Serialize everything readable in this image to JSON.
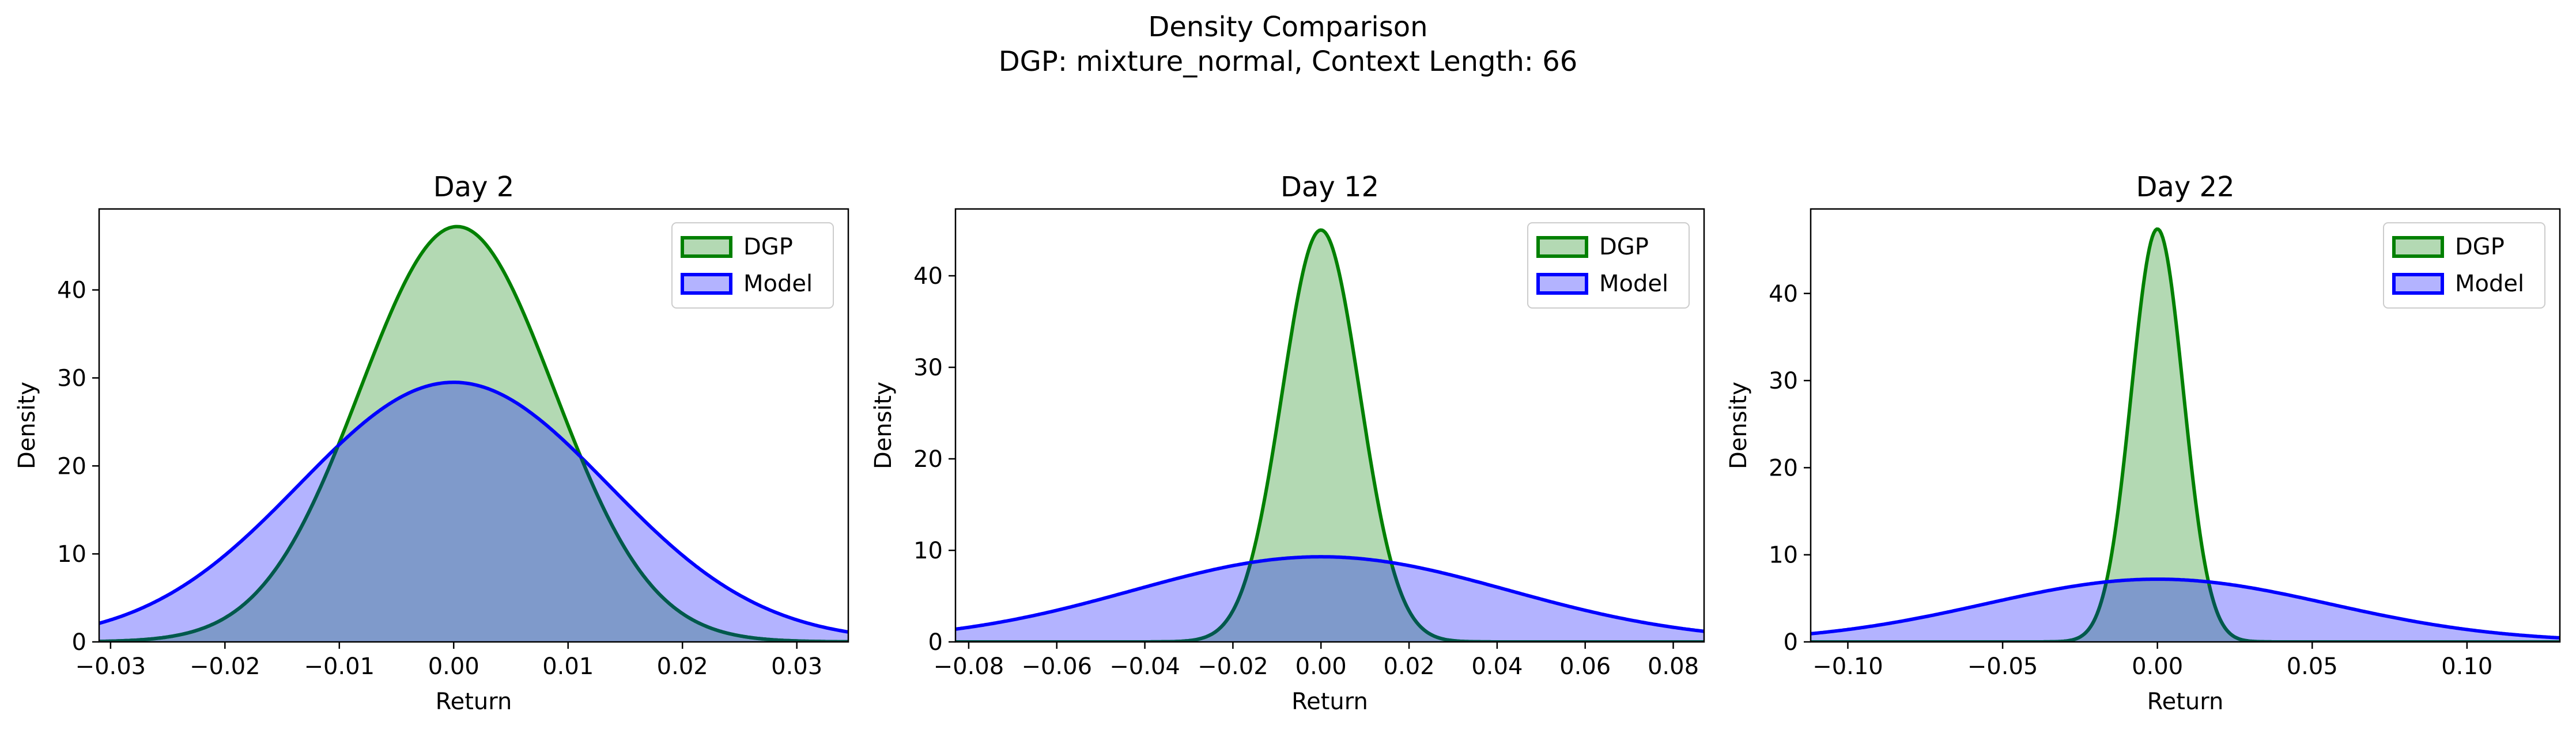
{
  "figure": {
    "title_line1": "Density Comparison",
    "title_line2": "DGP: mixture_normal, Context Length: 66"
  },
  "colors": {
    "dgp_line": "#008000",
    "dgp_fill": "#b3d9b3",
    "model_line": "#0000ff",
    "model_fill": "#b3b3ff",
    "overlap_fill": "#7f9acb"
  },
  "chart_data": [
    {
      "type": "area",
      "title": "Day 2",
      "xlabel": "Return",
      "ylabel": "Density",
      "xlim": [
        -0.031,
        0.0345
      ],
      "ylim": [
        0,
        49.2
      ],
      "xticks": [
        -0.03,
        -0.02,
        -0.01,
        0.0,
        0.01,
        0.02,
        0.03
      ],
      "xticklabels": [
        "−0.03",
        "−0.02",
        "−0.01",
        "0.00",
        "0.01",
        "0.02",
        "0.03"
      ],
      "yticks": [
        0,
        10,
        20,
        30,
        40
      ],
      "yticklabels": [
        "0",
        "10",
        "20",
        "30",
        "40"
      ],
      "legend": "upper right",
      "series": [
        {
          "name": "DGP",
          "distribution": "normal",
          "mean": 0.0003,
          "peak_density": 47.2
        },
        {
          "name": "Model",
          "distribution": "normal",
          "mean": 0.0,
          "peak_density": 29.5
        }
      ]
    },
    {
      "type": "area",
      "title": "Day 12",
      "xlabel": "Return",
      "ylabel": "Density",
      "xlim": [
        -0.083,
        0.087
      ],
      "ylim": [
        0,
        47.3
      ],
      "xticks": [
        -0.08,
        -0.06,
        -0.04,
        -0.02,
        0.0,
        0.02,
        0.04,
        0.06,
        0.08
      ],
      "xticklabels": [
        "−0.08",
        "−0.06",
        "−0.04",
        "−0.02",
        "0.00",
        "0.02",
        "0.04",
        "0.06",
        "0.08"
      ],
      "yticks": [
        0,
        10,
        20,
        30,
        40
      ],
      "yticklabels": [
        "0",
        "10",
        "20",
        "30",
        "40"
      ],
      "legend": "upper right",
      "series": [
        {
          "name": "DGP",
          "distribution": "normal",
          "mean": 0.0,
          "peak_density": 45.0
        },
        {
          "name": "Model",
          "distribution": "normal",
          "mean": 0.0,
          "peak_density": 9.3
        }
      ]
    },
    {
      "type": "area",
      "title": "Day 22",
      "xlabel": "Return",
      "ylabel": "Density",
      "xlim": [
        -0.112,
        0.13
      ],
      "ylim": [
        0,
        49.7
      ],
      "xticks": [
        -0.1,
        -0.05,
        0.0,
        0.05,
        0.1
      ],
      "xticklabels": [
        "−0.10",
        "−0.05",
        "0.00",
        "0.05",
        "0.10"
      ],
      "yticks": [
        0,
        10,
        20,
        30,
        40
      ],
      "yticklabels": [
        "0",
        "10",
        "20",
        "30",
        "40"
      ],
      "legend": "upper right",
      "series": [
        {
          "name": "DGP",
          "distribution": "normal",
          "mean": 0.0,
          "peak_density": 47.4
        },
        {
          "name": "Model",
          "distribution": "normal",
          "mean": 0.0,
          "peak_density": 7.2
        }
      ]
    }
  ]
}
